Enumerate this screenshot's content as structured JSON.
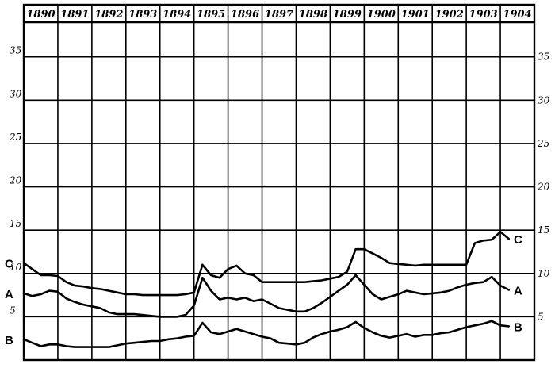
{
  "chart_data": {
    "type": "line",
    "title": "",
    "xlabel": "",
    "ylabel": "",
    "x": [
      1890.0,
      1890.25,
      1890.5,
      1890.75,
      1891.0,
      1891.25,
      1891.5,
      1891.75,
      1892.0,
      1892.25,
      1892.5,
      1892.75,
      1893.0,
      1893.25,
      1893.5,
      1893.75,
      1894.0,
      1894.25,
      1894.5,
      1894.75,
      1895.0,
      1895.25,
      1895.5,
      1895.75,
      1896.0,
      1896.25,
      1896.5,
      1896.75,
      1897.0,
      1897.25,
      1897.5,
      1897.75,
      1898.0,
      1898.25,
      1898.5,
      1898.75,
      1899.0,
      1899.25,
      1899.5,
      1899.75,
      1900.0,
      1900.25,
      1900.5,
      1900.75,
      1901.0,
      1901.25,
      1901.5,
      1901.75,
      1902.0,
      1902.25,
      1902.5,
      1902.75,
      1903.0,
      1903.25,
      1903.5,
      1903.75,
      1904.0,
      1904.25
    ],
    "years": [
      "1890",
      "1891",
      "1892",
      "1893",
      "1894",
      "1895",
      "1896",
      "1897",
      "1898",
      "1899",
      "1900",
      "1901",
      "1902",
      "1903",
      "1904"
    ],
    "ylim": [
      0,
      39
    ],
    "yticks_left": [
      "5",
      "10",
      "15",
      "20",
      "25",
      "30",
      "35"
    ],
    "yticks_right": [
      "5",
      "10",
      "15",
      "20",
      "25",
      "30",
      "35"
    ],
    "grid": true,
    "series": [
      {
        "name": "C",
        "values": [
          11.2,
          10.5,
          9.8,
          9.8,
          9.7,
          9.0,
          8.6,
          8.5,
          8.3,
          8.2,
          8.0,
          7.8,
          7.6,
          7.6,
          7.5,
          7.5,
          7.5,
          7.5,
          7.5,
          7.6,
          7.8,
          11.0,
          9.8,
          9.5,
          10.5,
          10.9,
          10.0,
          9.8,
          9.0,
          9.0,
          9.0,
          9.0,
          9.0,
          9.0,
          9.1,
          9.2,
          9.4,
          9.6,
          10.2,
          12.8,
          12.8,
          12.3,
          11.8,
          11.2,
          11.1,
          11.0,
          10.9,
          11.0,
          11.0,
          11.0,
          11.0,
          11.0,
          11.0,
          13.5,
          13.8,
          13.9,
          14.8,
          14.0
        ]
      },
      {
        "name": "A",
        "values": [
          7.7,
          7.4,
          7.6,
          8.0,
          7.9,
          7.1,
          6.7,
          6.4,
          6.2,
          6.0,
          5.5,
          5.3,
          5.3,
          5.3,
          5.2,
          5.1,
          5.0,
          5.0,
          5.0,
          5.2,
          6.3,
          9.5,
          8.0,
          7.0,
          7.2,
          7.0,
          7.2,
          6.8,
          7.0,
          6.5,
          6.0,
          5.8,
          5.6,
          5.6,
          6.0,
          6.6,
          7.3,
          8.0,
          8.7,
          9.8,
          8.7,
          7.6,
          7.0,
          7.3,
          7.6,
          8.0,
          7.8,
          7.6,
          7.7,
          7.8,
          8.0,
          8.4,
          8.7,
          8.9,
          9.0,
          9.6,
          8.6,
          8.1
        ]
      },
      {
        "name": "B",
        "values": [
          2.4,
          2.0,
          1.6,
          1.8,
          1.8,
          1.6,
          1.5,
          1.5,
          1.5,
          1.5,
          1.5,
          1.7,
          1.9,
          2.0,
          2.1,
          2.2,
          2.2,
          2.4,
          2.5,
          2.7,
          2.8,
          4.3,
          3.2,
          3.0,
          3.3,
          3.6,
          3.3,
          3.0,
          2.7,
          2.5,
          2.0,
          1.9,
          1.8,
          2.0,
          2.6,
          3.0,
          3.3,
          3.5,
          3.8,
          4.4,
          3.7,
          3.2,
          2.8,
          2.6,
          2.8,
          3.0,
          2.7,
          2.9,
          2.9,
          3.1,
          3.2,
          3.5,
          3.8,
          4.0,
          4.2,
          4.5,
          4.0,
          3.9
        ]
      }
    ]
  }
}
